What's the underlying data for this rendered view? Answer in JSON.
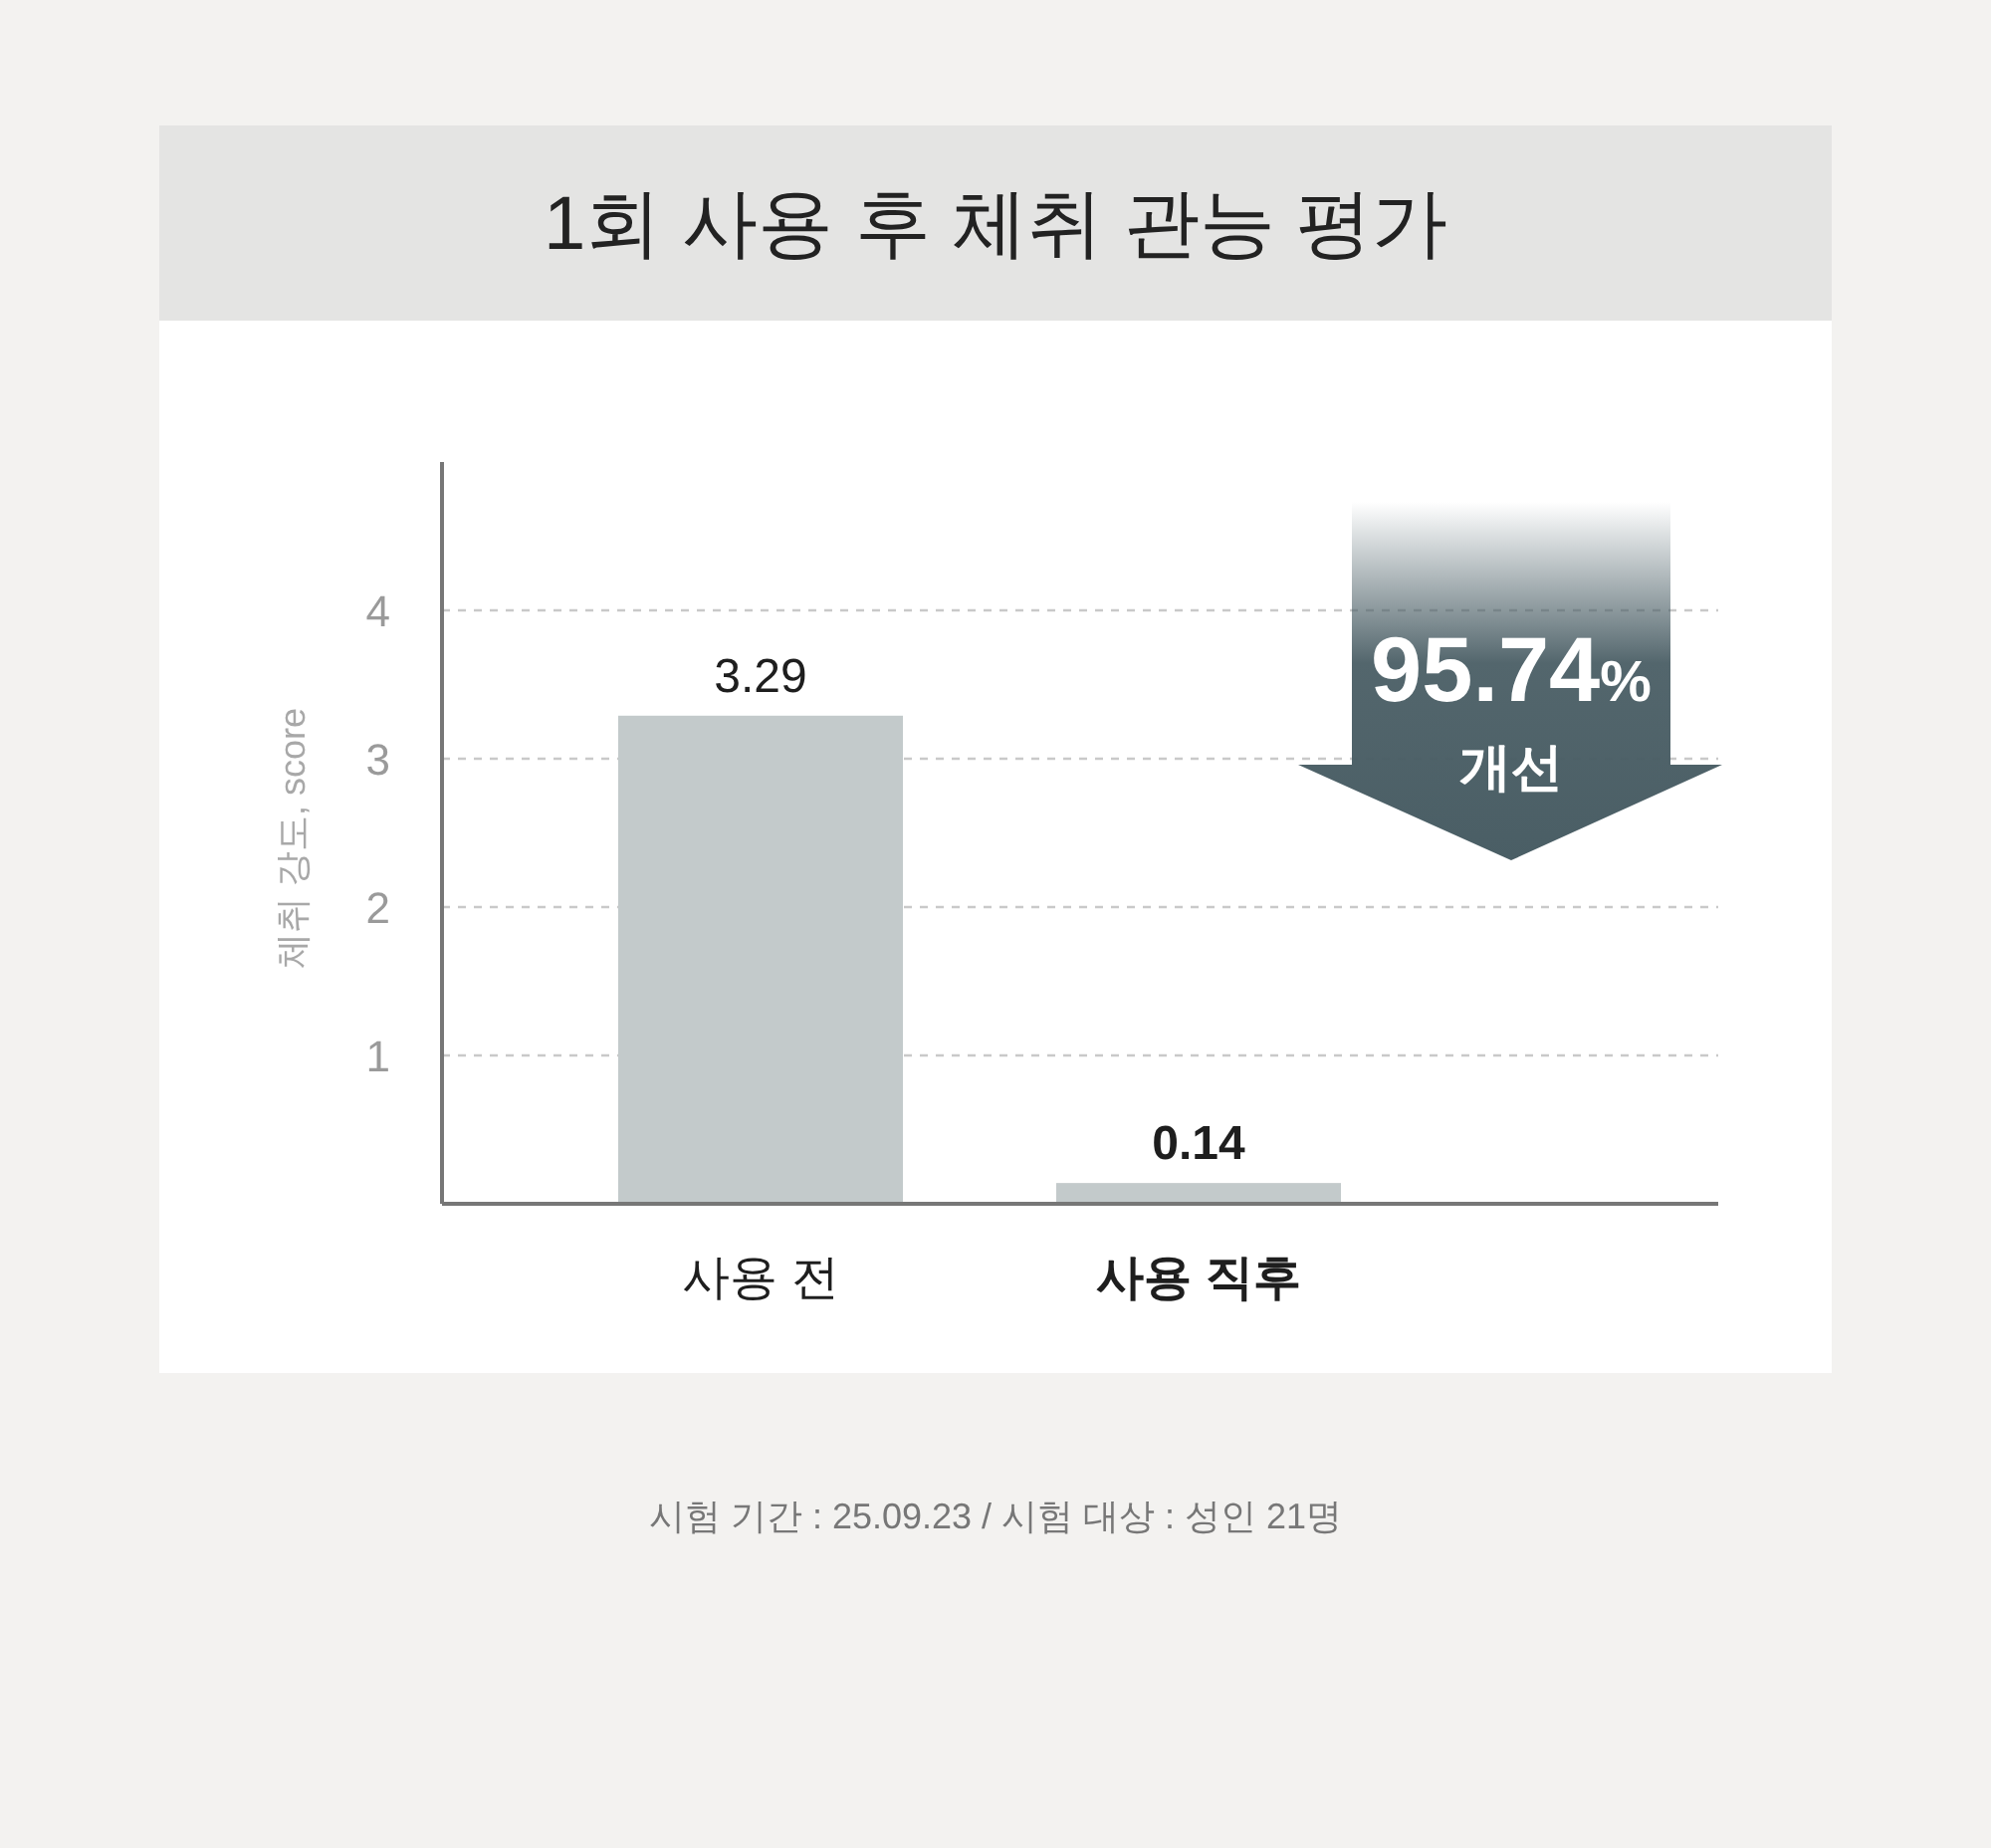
{
  "chart_data": {
    "type": "bar",
    "title": "1회 사용 후 체취 관능 평가",
    "ylabel": "체취 강도, score",
    "categories": [
      "사용 전",
      "사용 직후"
    ],
    "values": [
      3.29,
      0.14
    ],
    "color": "#c3cacb",
    "ylim": [
      0,
      5
    ],
    "yticks": [
      1,
      2,
      3,
      4
    ],
    "grid": "y",
    "data_labels": true,
    "annotations": [
      "95.74%",
      "개선",
      "시험 기간 : 25.09.23 / 시험 대상 : 성인 21명"
    ]
  }
}
